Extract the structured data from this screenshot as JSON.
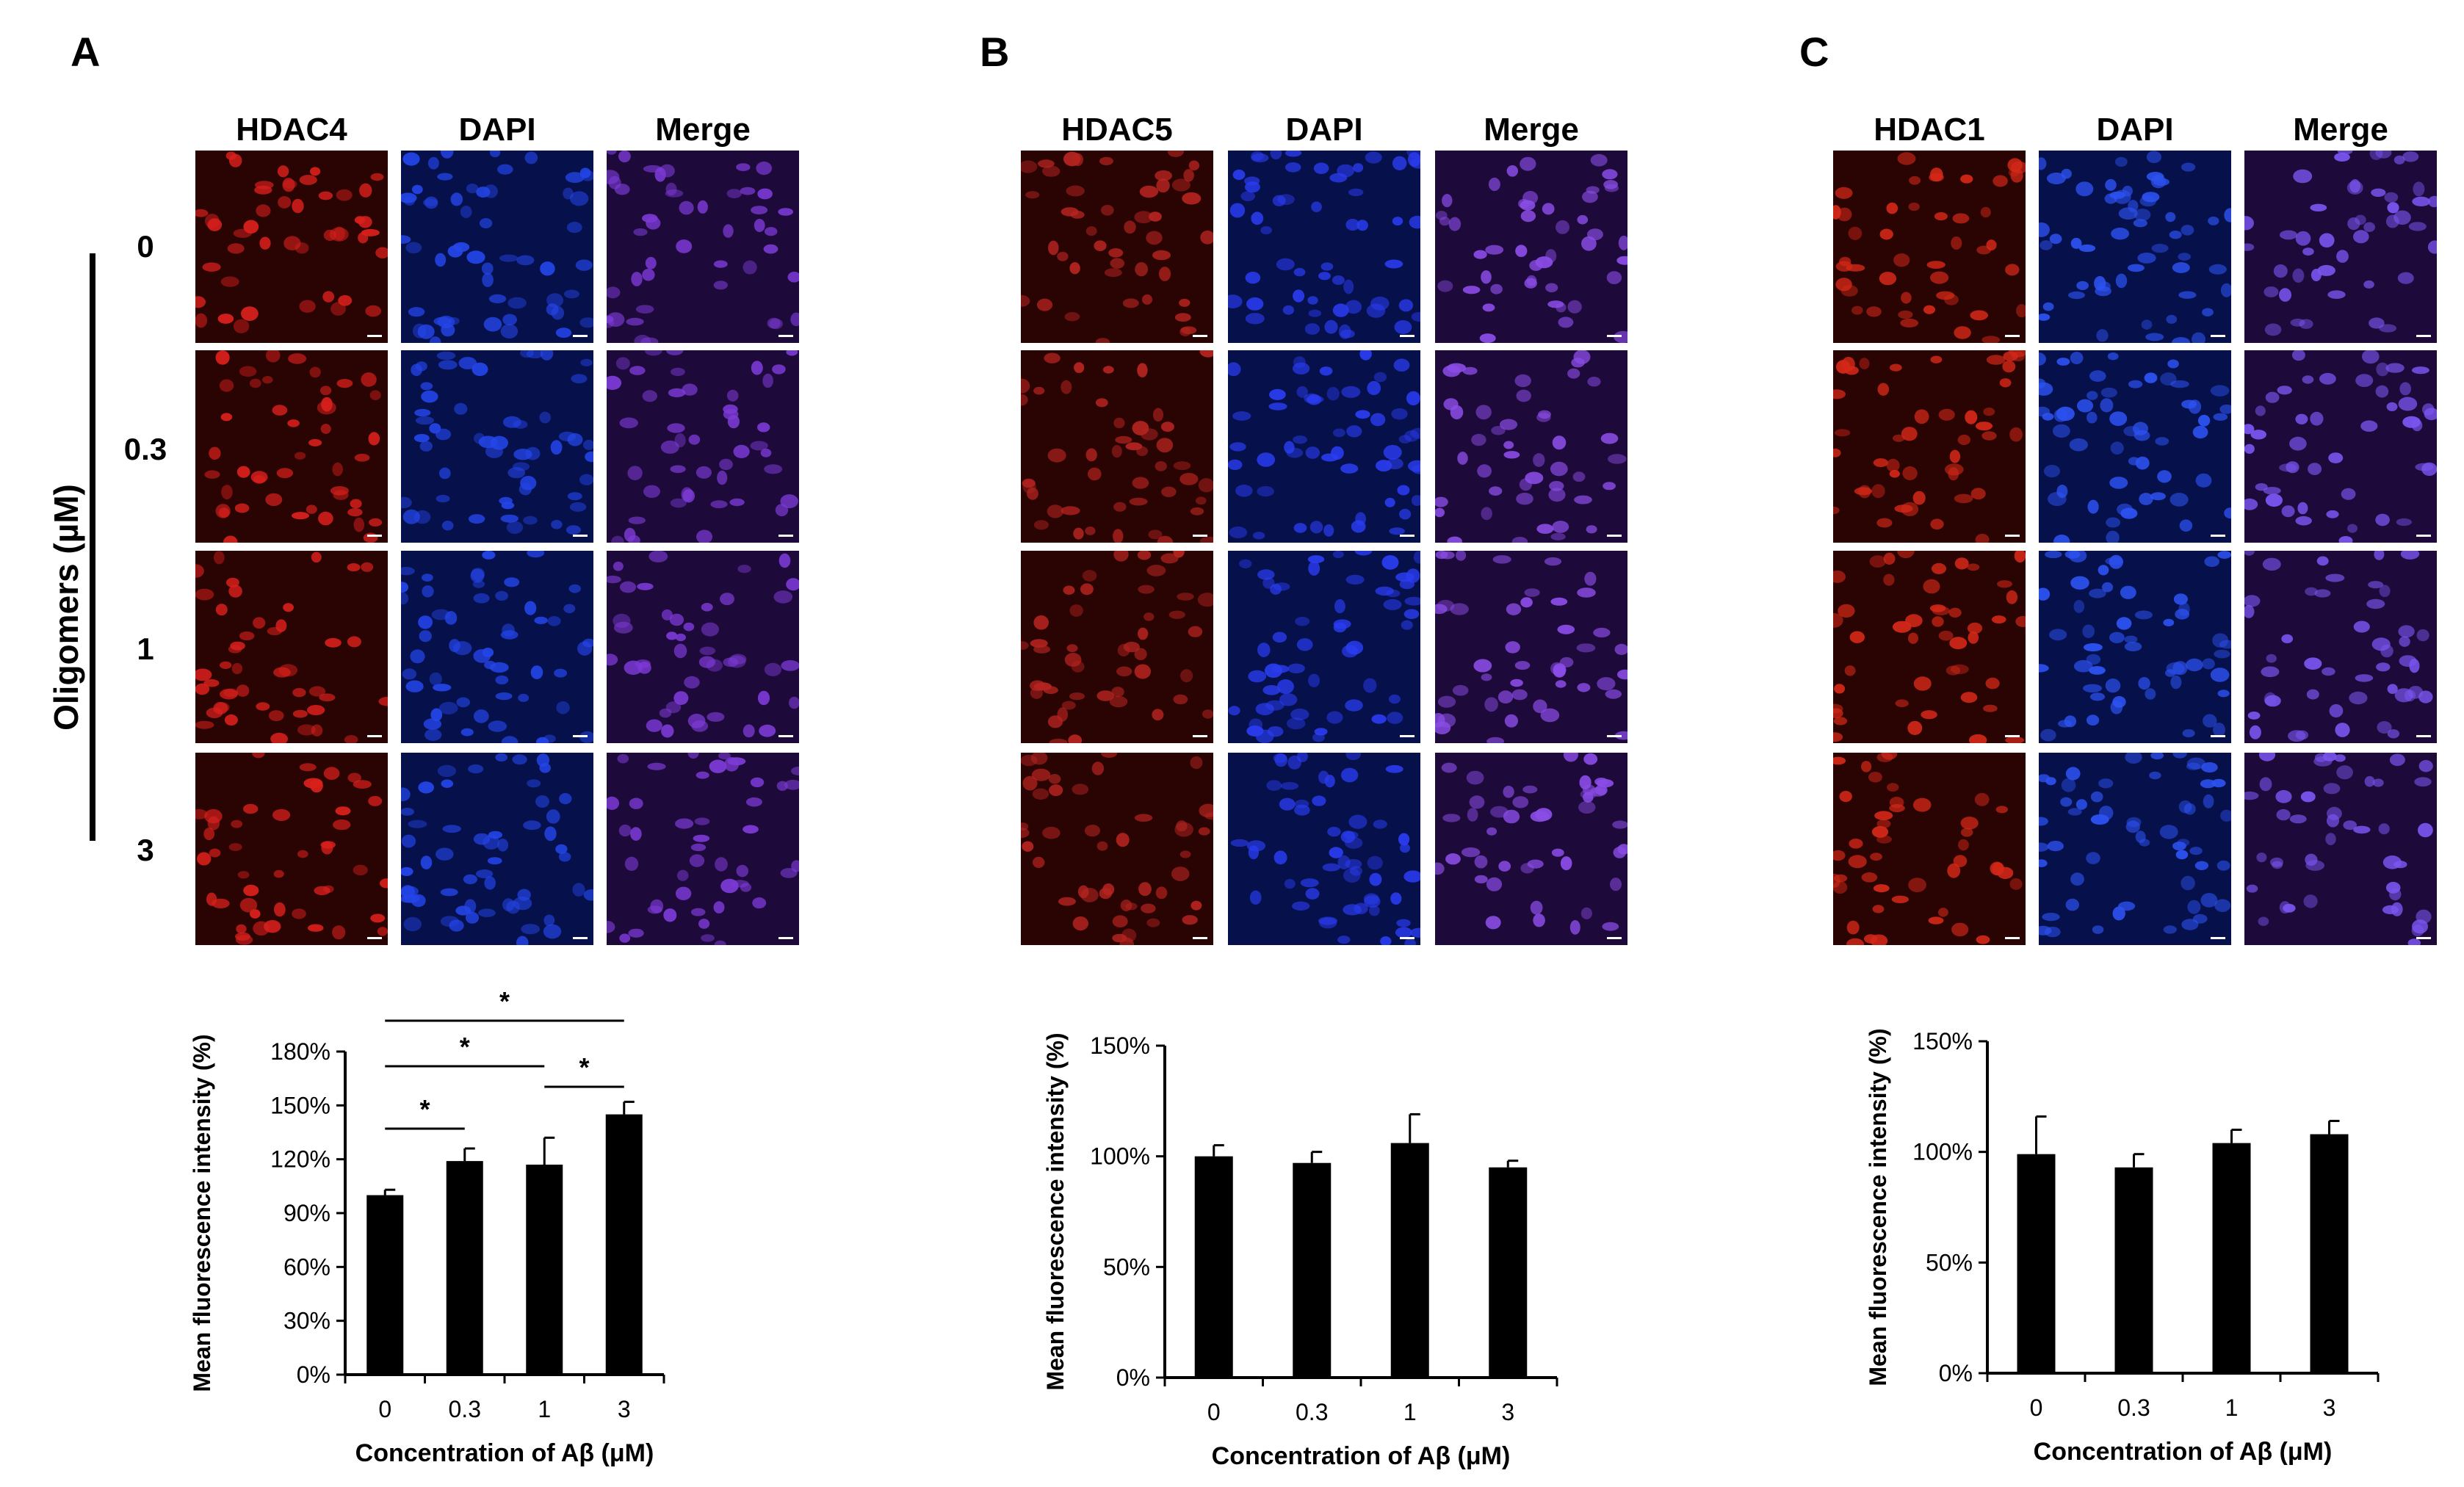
{
  "figure": {
    "panels": [
      {
        "letter": "A",
        "columns": [
          "HDAC4",
          "DAPI",
          "Merge"
        ],
        "row_values": [
          "0",
          "0.3",
          "1",
          "3"
        ],
        "row_axis_title": "Oligomers (µM)",
        "stain_color": "#d8201c",
        "dapi_color": "#2445e8",
        "merge_color": "#7c3ad6"
      },
      {
        "letter": "B",
        "columns": [
          "HDAC5",
          "DAPI",
          "Merge"
        ],
        "stain_color": "#b52420",
        "dapi_color": "#2a3cf0",
        "merge_color": "#8a4ce6"
      },
      {
        "letter": "C",
        "columns": [
          "HDAC1",
          "DAPI",
          "Merge"
        ],
        "stain_color": "#d42818",
        "dapi_color": "#2d52f2",
        "merge_color": "#7a55f0"
      }
    ]
  },
  "chart_data": [
    {
      "type": "bar",
      "categories": [
        "0",
        "0.3",
        "1",
        "3"
      ],
      "values": [
        100,
        119,
        117,
        145
      ],
      "errors": [
        3,
        7,
        15,
        7
      ],
      "title": "",
      "xlabel": "Concentration of Aβ (μM)",
      "ylabel": "Mean fluorescence intensity (%)",
      "ylim": [
        0,
        180
      ],
      "yticks": [
        "0%",
        "30%",
        "60%",
        "90%",
        "120%",
        "150%",
        "180%"
      ],
      "significance": [
        {
          "from": "0",
          "to": "0.3",
          "label": "*"
        },
        {
          "from": "0",
          "to": "1",
          "label": "*"
        },
        {
          "from": "0",
          "to": "3",
          "label": "*"
        },
        {
          "from": "1",
          "to": "3",
          "label": "*"
        }
      ],
      "bar_color": "#000000"
    },
    {
      "type": "bar",
      "categories": [
        "0",
        "0.3",
        "1",
        "3"
      ],
      "values": [
        100,
        97,
        106,
        95
      ],
      "errors": [
        5,
        5,
        13,
        3
      ],
      "title": "",
      "xlabel": "Concentration of Aβ (μM)",
      "ylabel": "Mean fluorescence intensity (%)",
      "ylim": [
        0,
        150
      ],
      "yticks": [
        "0%",
        "50%",
        "100%",
        "150%"
      ],
      "bar_color": "#000000"
    },
    {
      "type": "bar",
      "categories": [
        "0",
        "0.3",
        "1",
        "3"
      ],
      "values": [
        99,
        93,
        104,
        108
      ],
      "errors": [
        17,
        6,
        6,
        6
      ],
      "title": "",
      "xlabel": "Concentration of Aβ (μM)",
      "ylabel": "Mean fluorescence intensity (%)",
      "ylim": [
        0,
        150
      ],
      "yticks": [
        "0%",
        "50%",
        "100%",
        "150%"
      ],
      "bar_color": "#000000"
    }
  ]
}
